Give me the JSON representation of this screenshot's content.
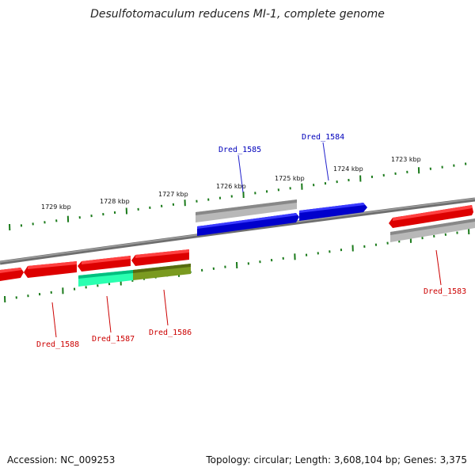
{
  "title": "Desulfotomaculum reducens MI-1, complete genome",
  "footer": {
    "accession": "Accession: NC_009253",
    "summary": "Topology: circular; Length: 3,608,104 bp; Genes: 3,375"
  },
  "colors": {
    "red": "#e60000",
    "blue": "#0000dd",
    "grey": "#a9a9a9",
    "cyan": "#33ffbb",
    "olive": "#6b8e23",
    "tick": "#1a7a1a",
    "backbone": "#808080",
    "label_red": "#cc0000",
    "label_blue": "#0000bb"
  },
  "kbp_labels": [
    "1729 kbp",
    "1728 kbp",
    "1727 kbp",
    "1726 kbp",
    "1725 kbp",
    "1724 kbp",
    "1723 kbp"
  ],
  "gene_labels": {
    "dred_1585": "Dred_1585",
    "dred_1584": "Dred_1584",
    "dred_1583": "Dred_1583",
    "dred_1588": "Dred_1588",
    "dred_1587": "Dred_1587",
    "dred_1586": "Dred_1586"
  }
}
